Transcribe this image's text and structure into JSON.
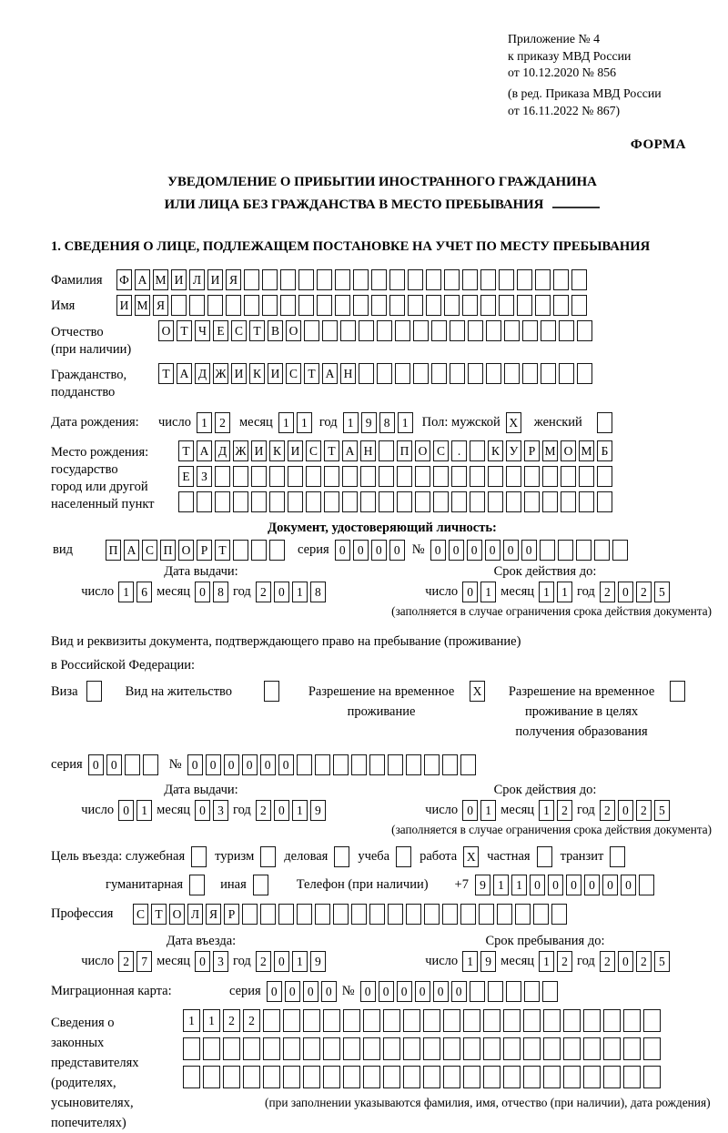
{
  "doc": {
    "appendix": [
      "Приложение № 4",
      "к приказу МВД России",
      "от 10.12.2020 № 856"
    ],
    "amendment": [
      "(в ред. Приказа МВД России",
      "от 16.11.2022 № 867)"
    ],
    "form_label": "ФОРМА",
    "title1": "УВЕДОМЛЕНИЕ О ПРИБЫТИИ ИНОСТРАННОГО ГРАЖДАНИНА",
    "title2": "ИЛИ ЛИЦА БЕЗ ГРАЖДАНСТВА В МЕСТО ПРЕБЫВАНИЯ",
    "section1": "1. СВЕДЕНИЯ О ЛИЦЕ, ПОДЛЕЖАЩЕМ ПОСТАНОВКЕ НА УЧЕТ ПО МЕСТУ ПРЕБЫВАНИЯ"
  },
  "labels": {
    "surname": "Фамилия",
    "name": "Имя",
    "patronymic": "Отчество",
    "patronymic2": "(при наличии)",
    "citizenship": "Гражданство,",
    "citizenship2": "подданство",
    "birthdate": "Дата рождения:",
    "day": "число",
    "month": "месяц",
    "year": "год",
    "sex_male": "Пол: мужской",
    "sex_female": "женский",
    "birthplace1": "Место рождения:",
    "birthplace2": "государство",
    "birthplace3": "город или другой",
    "birthplace4": "населенный пункт",
    "identity_doc": "Документ, удостоверяющий личность:",
    "kind": "вид",
    "series": "серия",
    "number": "№",
    "issue_date": "Дата выдачи:",
    "valid_until": "Срок действия до:",
    "valid_note": "(заполняется в случае ограничения срока действия документа)",
    "stay_doc1": "Вид и реквизиты документа, подтверждающего право на пребывание (проживание)",
    "stay_doc2": "в Российской Федерации:",
    "visa": "Виза",
    "residence_permit": "Вид на жительство",
    "temp_permit": "Разрешение на временное проживание",
    "edu_permit": "Разрешение на временное проживание в целях получения образования",
    "purpose": "Цель въезда: служебная",
    "tourism": "туризм",
    "business": "деловая",
    "study": "учеба",
    "work": "работа",
    "private": "частная",
    "transit": "транзит",
    "humanitarian": "гуманитарная",
    "other": "иная",
    "phone": "Телефон (при наличии)",
    "phone_prefix": "+7",
    "profession": "Профессия",
    "entry_date": "Дата въезда:",
    "stay_until": "Срок пребывания до:",
    "migration_card": "Миграционная карта:",
    "representatives": [
      "Сведения о",
      "законных",
      "представителях",
      "(родителях,",
      "усыновителях,",
      "попечителях)"
    ],
    "rep_note": "(при заполнении указываются фамилия, имя, отчество (при наличии), дата рождения)"
  },
  "values": {
    "surname": {
      "v": "ФАМИЛИЯ",
      "n": 26
    },
    "name": {
      "v": "ИМЯ",
      "n": 26
    },
    "patronymic": {
      "v": "ОТЧЕСТВО",
      "n": 24
    },
    "citizenship": {
      "v": "ТАДЖИКИСТАН",
      "n": 24
    },
    "birth_day": {
      "v": "12",
      "n": 2
    },
    "birth_month": {
      "v": "11",
      "n": 2
    },
    "birth_year": {
      "v": "1981",
      "n": 4
    },
    "sex_male": {
      "v": "X",
      "n": 1
    },
    "sex_female": {
      "v": "",
      "n": 1
    },
    "birthplace1": {
      "v": "ТАДЖИКИСТАН ПОС. КУРМОМБ",
      "n": 24
    },
    "birthplace2": {
      "v": "ЕЗ",
      "n": 24
    },
    "birthplace3": {
      "v": "",
      "n": 24
    },
    "doc_kind": {
      "v": "ПАСПОРТ",
      "n": 10
    },
    "doc_series": {
      "v": "0000",
      "n": 4
    },
    "doc_number": {
      "v": "000000",
      "n": 11
    },
    "doc_issue_day": {
      "v": "16",
      "n": 2
    },
    "doc_issue_month": {
      "v": "08",
      "n": 2
    },
    "doc_issue_year": {
      "v": "2018",
      "n": 4
    },
    "doc_valid_day": {
      "v": "01",
      "n": 2
    },
    "doc_valid_month": {
      "v": "11",
      "n": 2
    },
    "doc_valid_year": {
      "v": "2025",
      "n": 4
    },
    "visa": {
      "v": "",
      "n": 1
    },
    "residence_permit": {
      "v": "",
      "n": 1
    },
    "temp_permit": {
      "v": "X",
      "n": 1
    },
    "edu_permit": {
      "v": "",
      "n": 1
    },
    "permit_series": {
      "v": "00",
      "n": 4
    },
    "permit_number": {
      "v": "000000",
      "n": 16
    },
    "permit_issue_day": {
      "v": "01",
      "n": 2
    },
    "permit_issue_month": {
      "v": "03",
      "n": 2
    },
    "permit_issue_year": {
      "v": "2019",
      "n": 4
    },
    "permit_valid_day": {
      "v": "01",
      "n": 2
    },
    "permit_valid_month": {
      "v": "12",
      "n": 2
    },
    "permit_valid_year": {
      "v": "2025",
      "n": 4
    },
    "purpose_official": {
      "v": "",
      "n": 1
    },
    "purpose_tourism": {
      "v": "",
      "n": 1
    },
    "purpose_business": {
      "v": "",
      "n": 1
    },
    "purpose_study": {
      "v": "",
      "n": 1
    },
    "purpose_work": {
      "v": "X",
      "n": 1
    },
    "purpose_private": {
      "v": "",
      "n": 1
    },
    "purpose_transit": {
      "v": "",
      "n": 1
    },
    "purpose_humanitarian": {
      "v": "",
      "n": 1
    },
    "purpose_other": {
      "v": "",
      "n": 1
    },
    "phone": {
      "v": "911000000",
      "n": 10
    },
    "profession": {
      "v": "СТОЛЯР",
      "n": 24
    },
    "entry_day": {
      "v": "27",
      "n": 2
    },
    "entry_month": {
      "v": "03",
      "n": 2
    },
    "entry_year": {
      "v": "2019",
      "n": 4
    },
    "stay_day": {
      "v": "19",
      "n": 2
    },
    "stay_month": {
      "v": "12",
      "n": 2
    },
    "stay_year": {
      "v": "2025",
      "n": 4
    },
    "migcard_series": {
      "v": "0000",
      "n": 4
    },
    "migcard_number": {
      "v": "000000",
      "n": 11
    },
    "rep1": {
      "v": "1122",
      "n": 24
    },
    "rep2": {
      "v": "",
      "n": 24
    },
    "rep3": {
      "v": "",
      "n": 24
    }
  }
}
